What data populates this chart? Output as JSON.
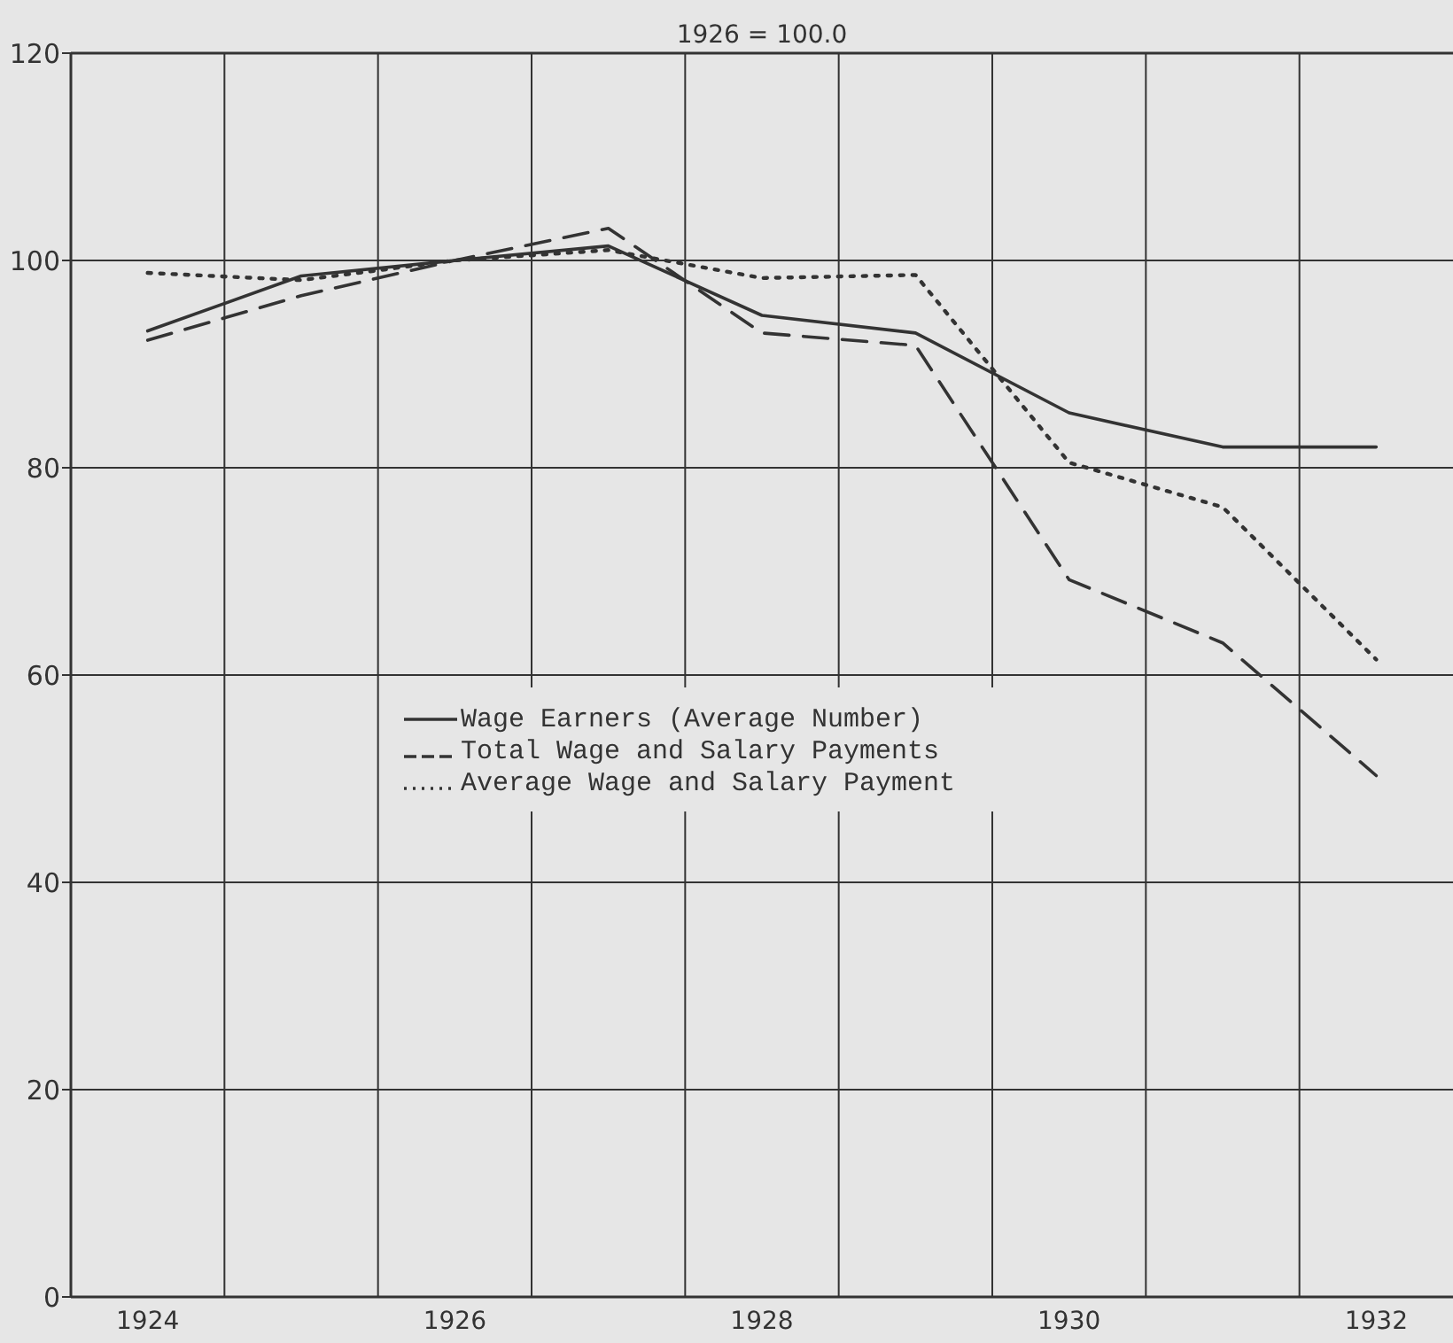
{
  "chart_data": {
    "type": "line",
    "title": "1926 = 100.0",
    "x": [
      1924,
      1925,
      1926,
      1927,
      1928,
      1929,
      1930,
      1931,
      1932
    ],
    "series": [
      {
        "name": "Wage Earners (Average Number)",
        "color": "#333333",
        "line_style": "solid",
        "values": [
          93.2,
          98.5,
          100,
          101.4,
          94.7,
          93.0,
          85.3,
          82.0,
          82.0
        ]
      },
      {
        "name": "Total Wage and Salary Payments",
        "color": "#333333",
        "line_style": "dashed",
        "values": [
          92.3,
          96.6,
          100,
          103.1,
          93.0,
          91.8,
          69.2,
          63.1,
          50.3
        ]
      },
      {
        "name": "Average Wage and Salary Payment",
        "color": "#333333",
        "line_style": "dotted",
        "values": [
          98.8,
          98.1,
          100,
          101.0,
          98.3,
          98.6,
          80.5,
          76.2,
          61.5
        ]
      }
    ],
    "xlim": [
      1923.5,
      1932.5
    ],
    "xticks": [
      1924,
      {
        "value": 1924.5,
        "label": null
      },
      1926,
      {
        "value": 1925.5,
        "label": null
      },
      {
        "value": 1926.5,
        "label": null
      },
      1928,
      {
        "value": 1927.5,
        "label": null
      },
      {
        "value": 1928.5,
        "label": null
      },
      1930,
      {
        "value": 1929.5,
        "label": null
      },
      {
        "value": 1930.5,
        "label": null
      },
      1932,
      {
        "value": 1931.5,
        "label": null
      }
    ],
    "ylim": [
      0,
      120
    ],
    "yticks": [
      0,
      20,
      40,
      60,
      80,
      100,
      120
    ],
    "grid": true,
    "legend": "center",
    "marker": "none"
  }
}
